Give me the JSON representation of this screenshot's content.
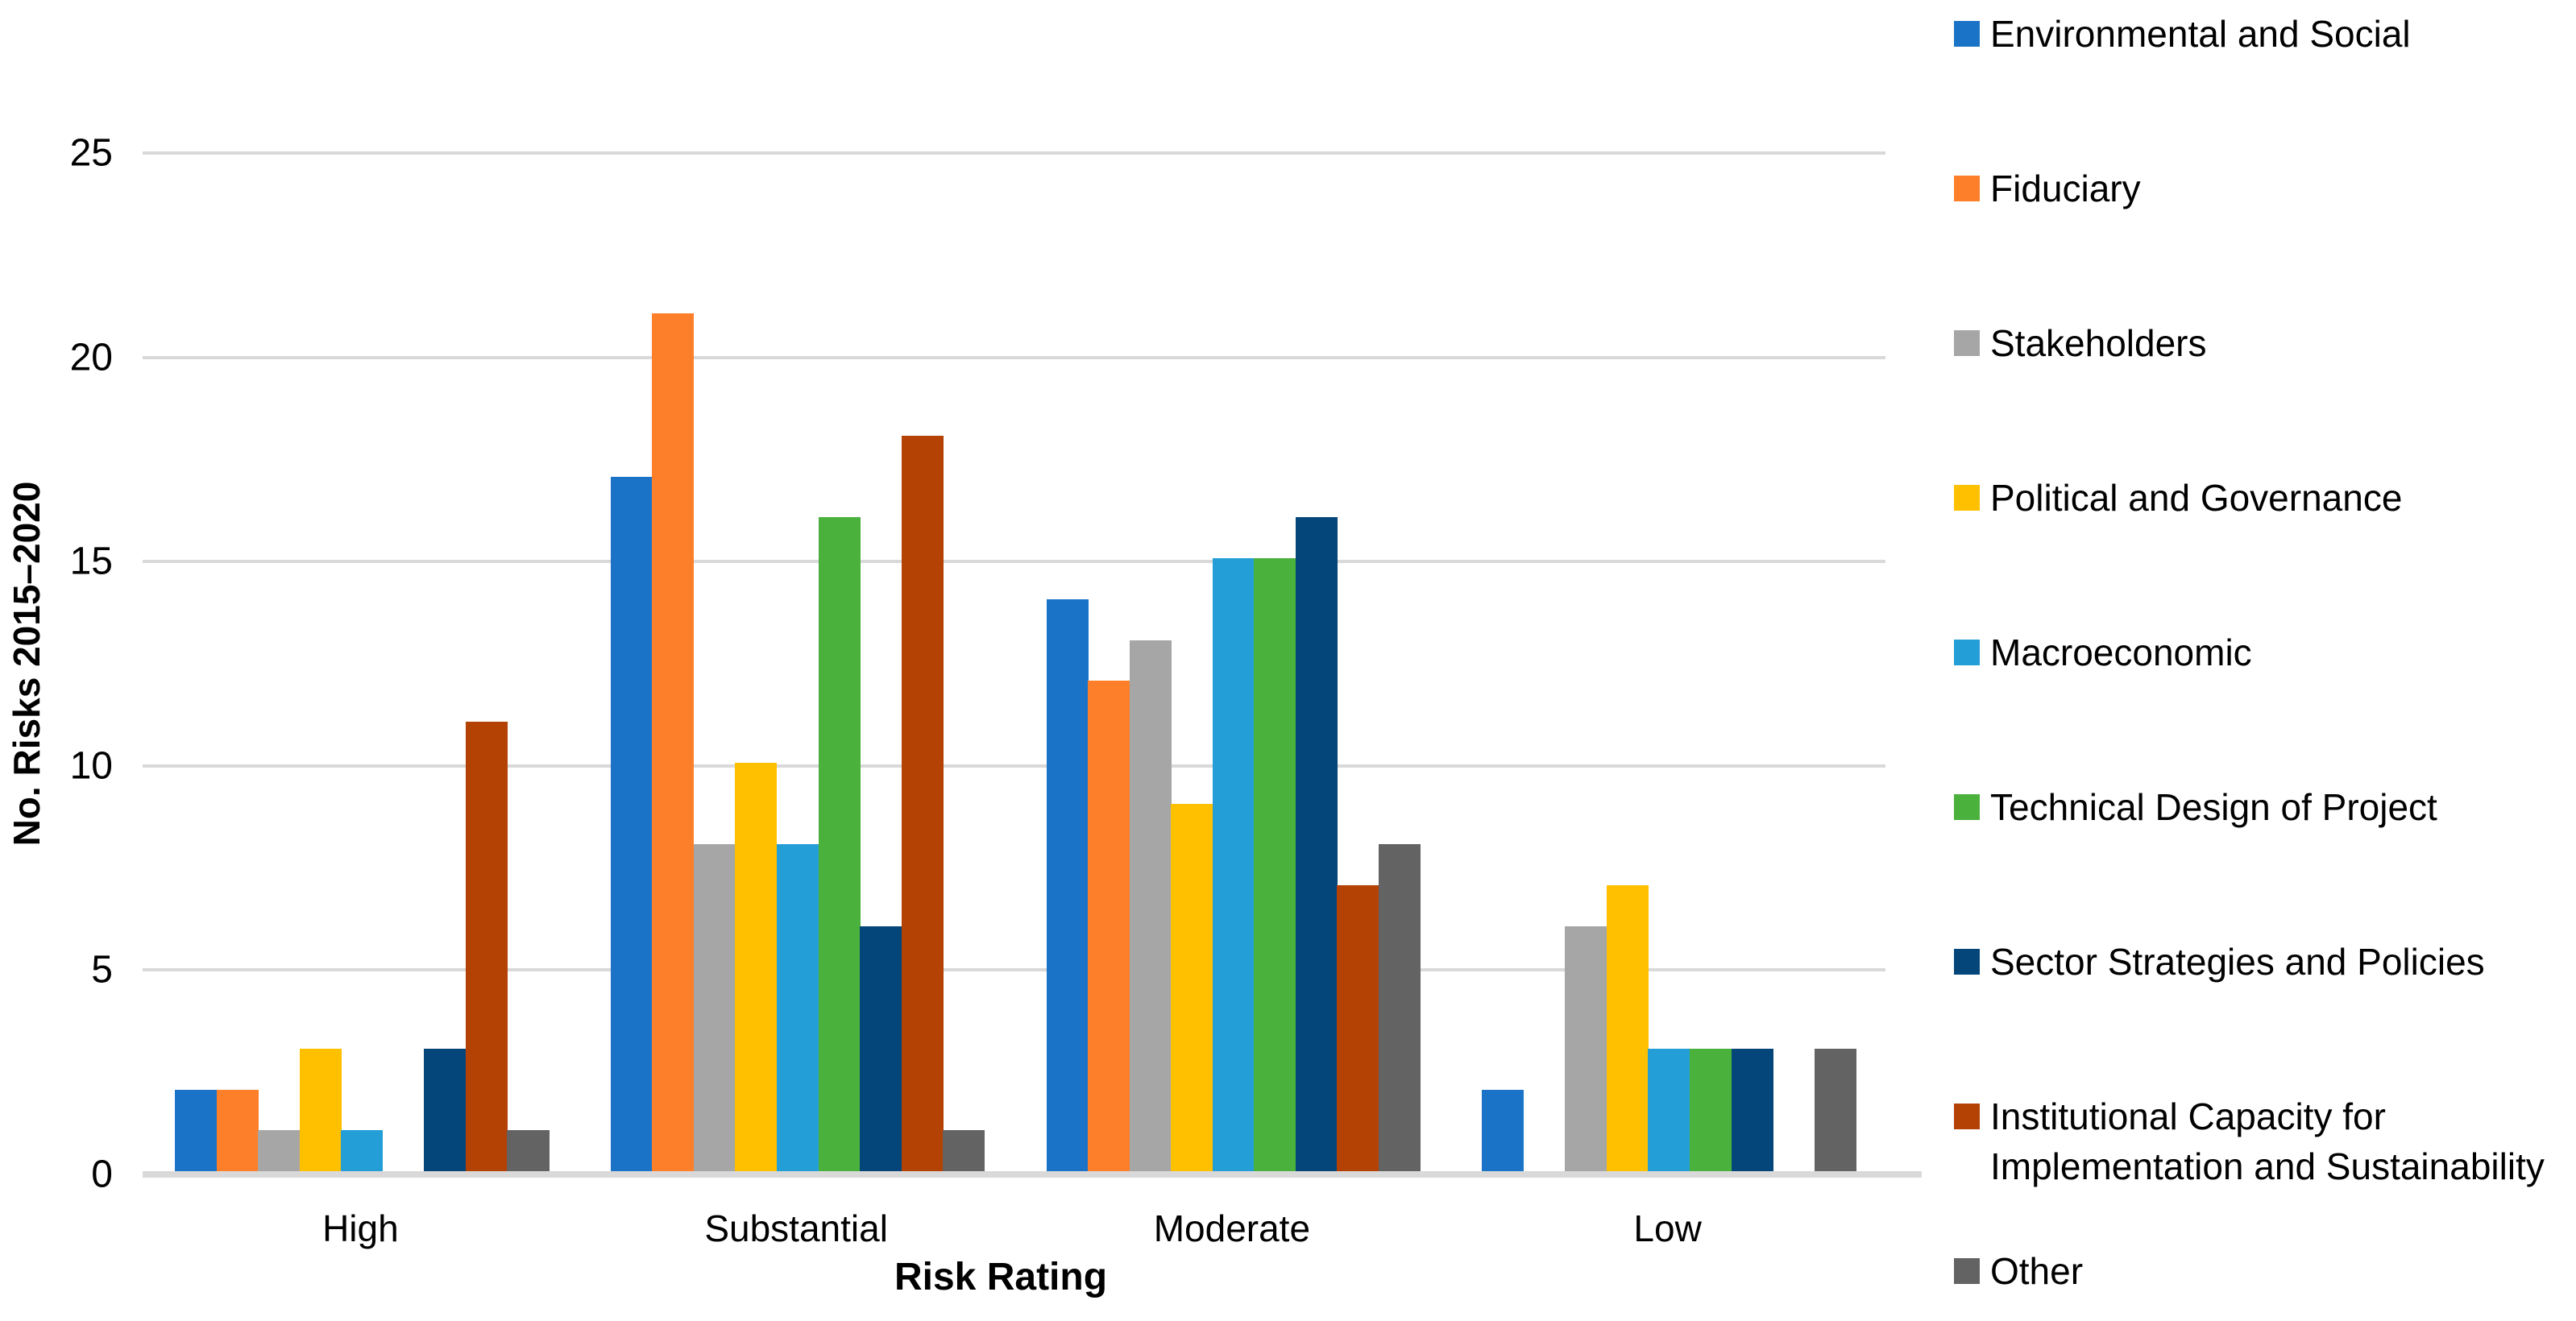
{
  "chart_data": {
    "type": "bar",
    "title": "",
    "xlabel": "Risk Rating",
    "ylabel": "No. Risks 2015–2020",
    "categories": [
      "High",
      "Substantial",
      "Moderate",
      "Low"
    ],
    "series": [
      {
        "name": "Environmental and Social",
        "color": "#1B73C7",
        "values": [
          2,
          17,
          14,
          2
        ]
      },
      {
        "name": "Fiduciary",
        "color": "#FD7F2A",
        "values": [
          2,
          21,
          12,
          0
        ]
      },
      {
        "name": "Stakeholders",
        "color": "#A6A6A6",
        "values": [
          1,
          8,
          13,
          6
        ]
      },
      {
        "name": "Political and Governance",
        "color": "#FFC000",
        "values": [
          3,
          10,
          9,
          7
        ]
      },
      {
        "name": "Macroeconomic",
        "color": "#249ED6",
        "values": [
          1,
          8,
          15,
          3
        ]
      },
      {
        "name": "Technical Design of Project",
        "color": "#4AB13C",
        "values": [
          0,
          16,
          15,
          3
        ]
      },
      {
        "name": "Sector Strategies and Policies",
        "color": "#05467A",
        "values": [
          3,
          6,
          16,
          3
        ]
      },
      {
        "name": "Institutional Capacity for Implementation and Sustainability",
        "color": "#B44205",
        "values": [
          11,
          18,
          7,
          0
        ]
      },
      {
        "name": "Other",
        "color": "#636363",
        "values": [
          1,
          1,
          8,
          3
        ]
      }
    ],
    "ylim": [
      0,
      25
    ],
    "yticks": [
      0,
      5,
      10,
      15,
      20,
      25
    ],
    "grid": true,
    "gridline_color": "#d9d9d9",
    "legend_position": "right",
    "legend_wrapped_item": [
      "Institutional Capacity for",
      "Implementation and Sustainability"
    ]
  }
}
